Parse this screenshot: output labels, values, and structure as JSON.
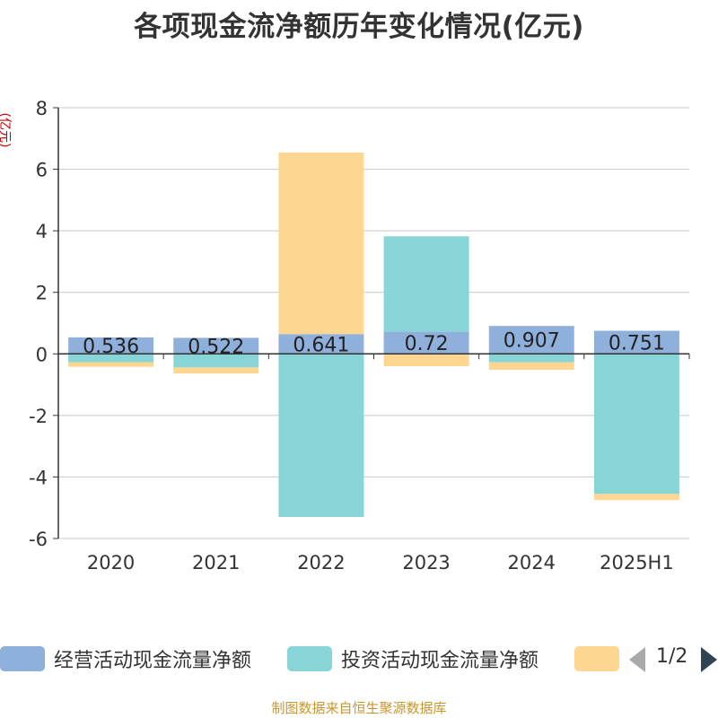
{
  "chart_data": {
    "type": "bar",
    "title": "各项现金流净额历年变化情况(亿元)",
    "ylabel": "(亿元)",
    "categories": [
      "2020",
      "2021",
      "2022",
      "2023",
      "2024",
      "2025H1"
    ],
    "ylim": [
      -6,
      8
    ],
    "yticks": [
      -6,
      -4,
      -2,
      0,
      2,
      4,
      6,
      8
    ],
    "grid": true,
    "stacked": true,
    "series": [
      {
        "name": "经营活动现金流量净额",
        "color": "#8fb0db",
        "values": [
          0.536,
          0.522,
          0.641,
          0.72,
          0.907,
          0.751
        ],
        "labels": [
          "0.536",
          "0.522",
          "0.641",
          "0.72",
          "0.907",
          "0.751"
        ]
      },
      {
        "name": "投资活动现金流量净额",
        "color": "#88d5d8",
        "values": [
          -0.27,
          -0.44,
          -5.3,
          3.1,
          -0.27,
          -4.55
        ]
      },
      {
        "name": "",
        "color": "#fdd692",
        "values": [
          -0.15,
          -0.2,
          5.9,
          -0.4,
          -0.25,
          -0.2
        ]
      }
    ]
  },
  "legend": {
    "items": [
      {
        "label": "经营活动现金流量净额",
        "color": "#8fb0db"
      },
      {
        "label": "投资活动现金流量净额",
        "color": "#88d5d8"
      },
      {
        "label": "",
        "color": "#fdd692"
      }
    ],
    "page": "1/2"
  },
  "source": "制图数据来自恒生聚源数据库"
}
